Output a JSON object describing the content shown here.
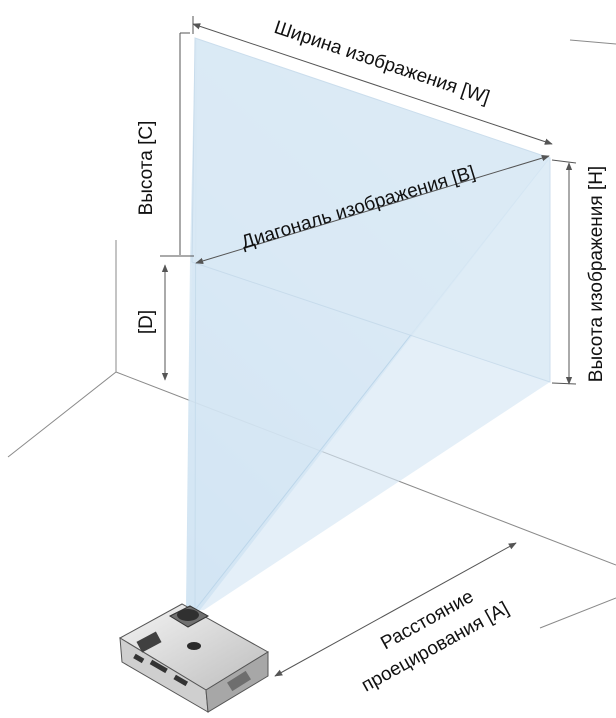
{
  "labels": {
    "image_width": "Ширина изображения [W]",
    "height_c": "Высота [C]",
    "image_diagonal": "Диагональ изображения [B]",
    "image_height": "Высота изображения [H]",
    "offset_d": "[D]",
    "projection_distance_line1": "Расстояние",
    "projection_distance_line2": "проецирования [A]"
  },
  "colors": {
    "beam": "#cfe3f2",
    "screen": "#d7e9f6",
    "lines": "#777777",
    "arrows": "#555555",
    "text": "#111111"
  },
  "icons": {
    "projector": "projector-icon"
  }
}
